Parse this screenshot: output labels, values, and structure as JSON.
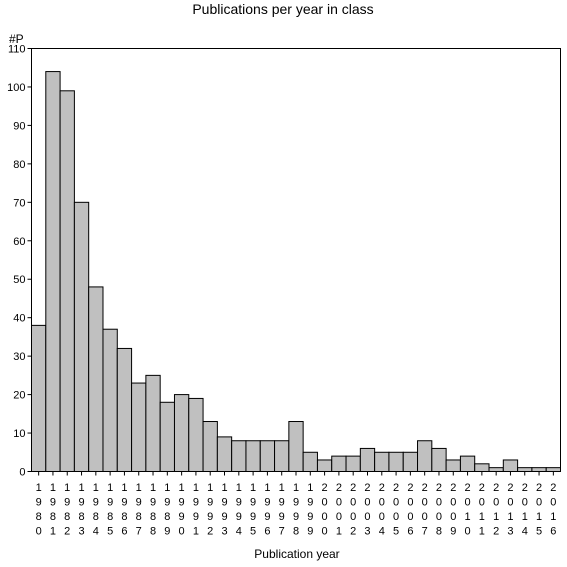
{
  "chart_data": {
    "type": "bar",
    "title": "Publications per year in class",
    "xlabel": "Publication year",
    "ylabel": "#P",
    "ylim": [
      0,
      110
    ],
    "yticks": [
      0,
      10,
      20,
      30,
      40,
      50,
      60,
      70,
      80,
      90,
      100,
      110
    ],
    "bar_color": "#c0c0c0",
    "categories": [
      "1980",
      "1981",
      "1982",
      "1983",
      "1984",
      "1985",
      "1986",
      "1987",
      "1988",
      "1989",
      "1990",
      "1991",
      "1992",
      "1993",
      "1994",
      "1995",
      "1996",
      "1997",
      "1998",
      "1999",
      "2000",
      "2001",
      "2002",
      "2003",
      "2004",
      "2005",
      "2006",
      "2007",
      "2008",
      "2009",
      "2010",
      "2011",
      "2012",
      "2013",
      "2014",
      "2015",
      "2016"
    ],
    "values": [
      38,
      104,
      99,
      70,
      48,
      37,
      32,
      23,
      25,
      18,
      20,
      19,
      13,
      9,
      8,
      8,
      8,
      8,
      13,
      5,
      3,
      4,
      4,
      6,
      5,
      5,
      5,
      8,
      6,
      3,
      4,
      2,
      1,
      3,
      1,
      1,
      1
    ]
  }
}
